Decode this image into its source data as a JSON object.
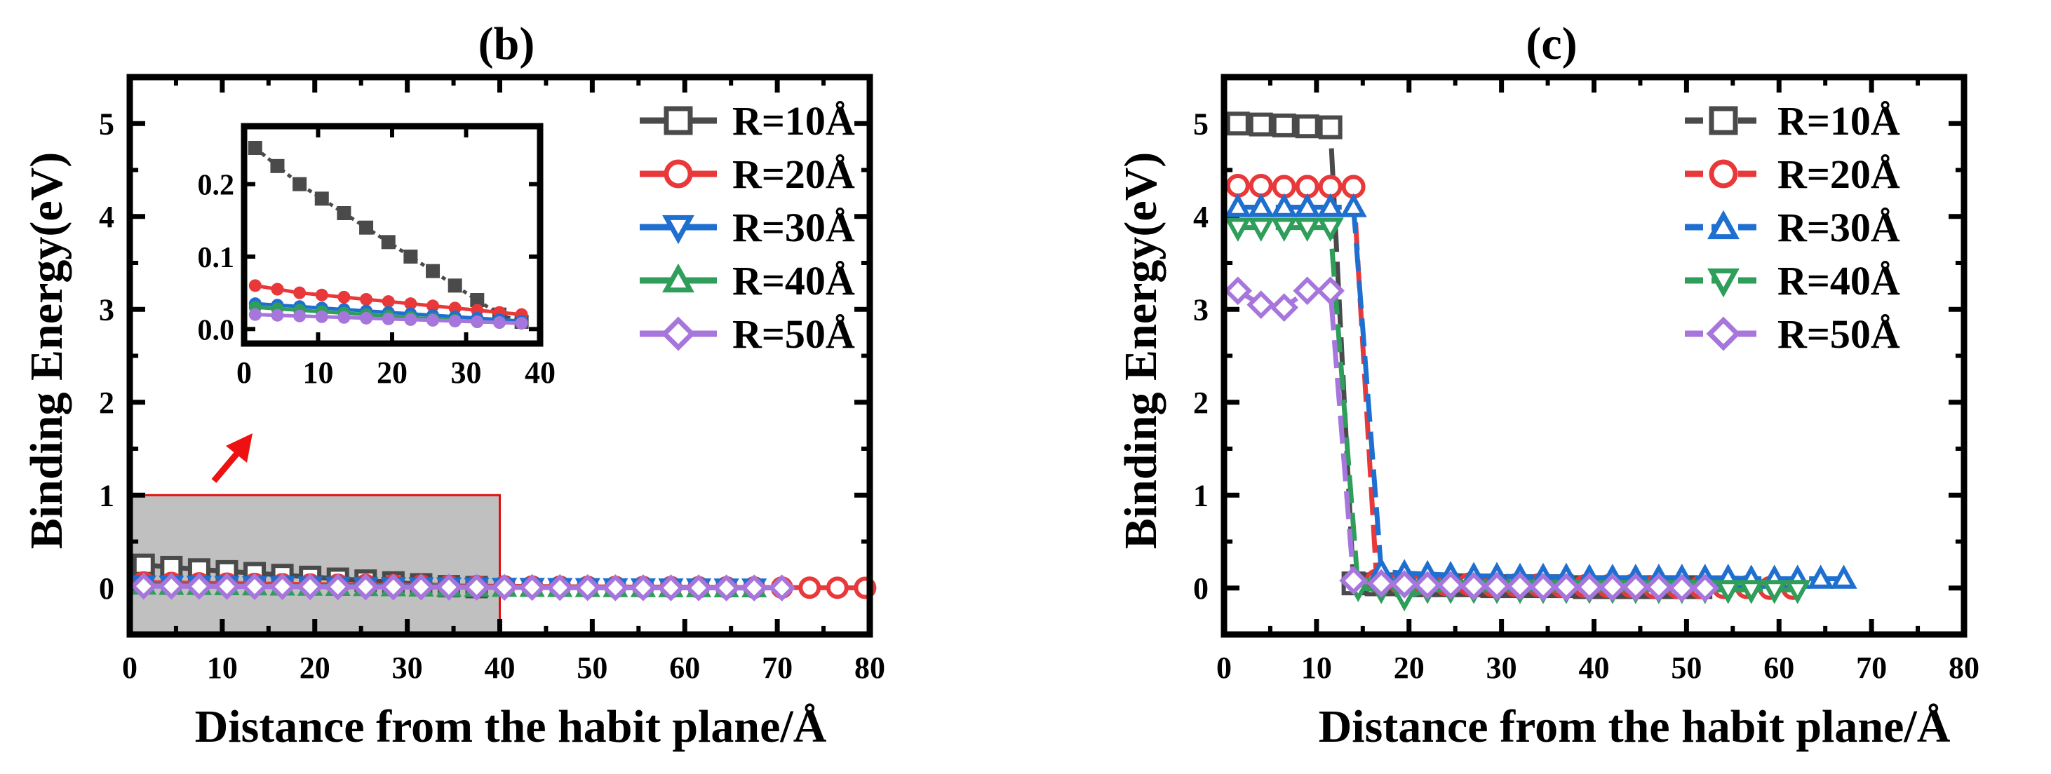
{
  "colors": {
    "r10": "#4a4a4a",
    "r20": "#e8383a",
    "r30": "#1f6fd0",
    "r40": "#2e9e5a",
    "r50": "#a776dd",
    "highlight_fill": "#c0c0c0",
    "highlight_stroke": "#e01010",
    "arrow": "#ee1111"
  },
  "chart_data": [
    {
      "panel": "(b)",
      "type": "line",
      "title": "(b)",
      "xlabel": "Distance from the habit plane/Å",
      "ylabel": "Binding Energy(eV)",
      "xlim": [
        0,
        80
      ],
      "ylim": [
        -0.5,
        5.5
      ],
      "xticks": [
        0,
        10,
        20,
        30,
        40,
        50,
        60,
        70,
        80
      ],
      "yticks": [
        0,
        1,
        2,
        3,
        4,
        5
      ],
      "highlight_region": {
        "x": [
          0,
          40
        ],
        "y": [
          -0.5,
          1.0
        ]
      },
      "legend_position": "top-right",
      "series": [
        {
          "name": "R=10Å",
          "key": "r10",
          "marker": "square",
          "x": [
            1.5,
            4.5,
            7.5,
            10.5,
            13.5,
            16.5,
            19.5,
            22.5,
            25.5,
            28.5,
            31.5,
            34.5,
            37.5
          ],
          "y": [
            0.25,
            0.225,
            0.2,
            0.18,
            0.16,
            0.14,
            0.12,
            0.1,
            0.08,
            0.06,
            0.04,
            0.02,
            0.01
          ]
        },
        {
          "name": "R=20Å",
          "key": "r20",
          "marker": "circle",
          "x": [
            1.5,
            4.5,
            7.5,
            10.5,
            13.5,
            16.5,
            19.5,
            22.5,
            25.5,
            28.5,
            31.5,
            34.5,
            37.5,
            40.5,
            43.5,
            46.5,
            49.5,
            52.5,
            55.5,
            58.5,
            61.5,
            64.5,
            67.5,
            70.5,
            73.5,
            76.5,
            79.5
          ],
          "y": [
            0.06,
            0.055,
            0.05,
            0.047,
            0.044,
            0.041,
            0.038,
            0.035,
            0.032,
            0.029,
            0.026,
            0.023,
            0.02,
            0.018,
            0.016,
            0.014,
            0.012,
            0.011,
            0.01,
            0.009,
            0.008,
            0.007,
            0.006,
            0.005,
            0.004,
            0.003,
            0.002
          ]
        },
        {
          "name": "R=30Å",
          "key": "r30",
          "marker": "triangle-down",
          "x": [
            1.5,
            4.5,
            7.5,
            10.5,
            13.5,
            16.5,
            19.5,
            22.5,
            25.5,
            28.5,
            31.5,
            34.5,
            37.5,
            40.5,
            43.5,
            46.5,
            49.5,
            52.5,
            55.5,
            58.5,
            61.5,
            64.5,
            67.5
          ],
          "y": [
            0.035,
            0.033,
            0.031,
            0.029,
            0.027,
            0.025,
            0.023,
            0.021,
            0.019,
            0.017,
            0.015,
            0.013,
            0.011,
            0.009,
            0.008,
            0.007,
            0.006,
            0.005,
            0.004,
            0.003,
            0.003,
            0.002,
            0.002
          ]
        },
        {
          "name": "R=40Å",
          "key": "r40",
          "marker": "triangle-up",
          "x": [
            1.5,
            4.5,
            7.5,
            10.5,
            13.5,
            16.5,
            19.5,
            22.5,
            25.5,
            28.5,
            31.5,
            34.5,
            37.5,
            40.5,
            43.5,
            46.5,
            49.5,
            52.5,
            55.5,
            58.5,
            61.5,
            64.5,
            67.5
          ],
          "y": [
            0.03,
            0.028,
            0.026,
            0.024,
            0.022,
            0.02,
            0.018,
            0.016,
            0.014,
            0.012,
            0.01,
            0.009,
            0.008,
            0.007,
            0.006,
            0.005,
            0.004,
            0.003,
            0.003,
            0.002,
            0.002,
            0.001,
            0.001
          ]
        },
        {
          "name": "R=50Å",
          "key": "r50",
          "marker": "diamond",
          "x": [
            1.5,
            4.5,
            7.5,
            10.5,
            13.5,
            16.5,
            19.5,
            22.5,
            25.5,
            28.5,
            31.5,
            34.5,
            37.5,
            40.5,
            43.5,
            46.5,
            49.5,
            52.5,
            55.5,
            58.5,
            61.5,
            64.5,
            67.5,
            70.5
          ],
          "y": [
            0.02,
            0.019,
            0.018,
            0.017,
            0.016,
            0.015,
            0.014,
            0.013,
            0.012,
            0.011,
            0.01,
            0.009,
            0.008,
            0.007,
            0.006,
            0.005,
            0.004,
            0.003,
            0.003,
            0.002,
            0.002,
            0.001,
            0.001,
            0.001
          ]
        }
      ],
      "inset": {
        "xlim": [
          0,
          40
        ],
        "ylim": [
          -0.02,
          0.28
        ],
        "xticks": [
          0,
          10,
          20,
          30,
          40
        ],
        "yticks": [
          0.0,
          0.1,
          0.2
        ],
        "ytick_labels": [
          "0.0",
          "0.1",
          "0.2"
        ]
      }
    },
    {
      "panel": "(c)",
      "type": "line",
      "title": "(c)",
      "xlabel": "Distance from the habit plane/Å",
      "ylabel": "Binding Energy(eV)",
      "xlim": [
        0,
        80
      ],
      "ylim": [
        -0.5,
        5.5
      ],
      "xticks": [
        0,
        10,
        20,
        30,
        40,
        50,
        60,
        70,
        80
      ],
      "yticks": [
        0,
        1,
        2,
        3,
        4,
        5
      ],
      "legend_position": "top-right",
      "series": [
        {
          "name": "R=10Å",
          "key": "r10",
          "marker": "square",
          "x": [
            1.5,
            4.0,
            6.5,
            9.0,
            11.5,
            14.0,
            16.5,
            19.0,
            21.5,
            24.0,
            26.5,
            29.0,
            31.5,
            34.0,
            36.5,
            39.0,
            41.5,
            44.0,
            46.5,
            49.0,
            51.5
          ],
          "y": [
            5.0,
            4.99,
            4.98,
            4.97,
            4.96,
            0.05,
            0.04,
            0.04,
            0.03,
            0.03,
            0.03,
            0.02,
            0.02,
            0.02,
            0.02,
            0.01,
            0.01,
            0.01,
            0.01,
            0.01,
            0.01
          ]
        },
        {
          "name": "R=20Å",
          "key": "r20",
          "marker": "circle",
          "x": [
            1.5,
            4.0,
            6.5,
            9.0,
            11.5,
            14.0,
            16.5,
            19.0,
            21.5,
            24.0,
            26.5,
            29.0,
            31.5,
            34.0,
            36.5,
            39.0,
            41.5,
            44.0,
            46.5,
            49.0,
            51.5,
            54.0,
            56.5,
            59.0,
            61.5
          ],
          "y": [
            4.33,
            4.33,
            4.32,
            4.32,
            4.32,
            4.32,
            0.08,
            0.06,
            0.05,
            0.04,
            0.04,
            0.03,
            0.03,
            0.03,
            0.02,
            0.02,
            0.02,
            0.02,
            0.01,
            0.01,
            0.01,
            0.01,
            0.01,
            0.0,
            0.0
          ]
        },
        {
          "name": "R=30Å",
          "key": "r30",
          "marker": "triangle-up",
          "x": [
            1.5,
            4.0,
            6.5,
            9.0,
            11.5,
            14.0,
            17.0,
            19.5,
            22.0,
            24.5,
            27.0,
            29.5,
            32.0,
            34.5,
            37.0,
            39.5,
            42.0,
            44.5,
            47.0,
            49.5,
            52.0,
            54.5,
            57.0,
            59.5,
            62.0,
            64.5,
            67.0
          ],
          "y": [
            4.1,
            4.1,
            4.1,
            4.1,
            4.1,
            4.1,
            0.18,
            0.16,
            0.15,
            0.14,
            0.13,
            0.13,
            0.12,
            0.12,
            0.12,
            0.11,
            0.11,
            0.11,
            0.11,
            0.11,
            0.11,
            0.11,
            0.1,
            0.1,
            0.1,
            0.1,
            0.1
          ]
        },
        {
          "name": "R=40Å",
          "key": "r40",
          "marker": "triangle-down",
          "x": [
            1.5,
            4.0,
            6.5,
            9.0,
            11.5,
            14.5,
            17.0,
            19.5,
            22.0,
            24.5,
            27.0,
            29.5,
            32.0,
            34.5,
            37.0,
            39.5,
            42.0,
            44.5,
            47.0,
            49.5,
            52.0,
            54.5,
            57.0,
            59.5,
            62.0
          ],
          "y": [
            3.88,
            3.88,
            3.88,
            3.88,
            3.88,
            0.0,
            -0.02,
            -0.1,
            -0.02,
            -0.02,
            -0.02,
            -0.02,
            -0.02,
            -0.02,
            -0.02,
            -0.02,
            -0.02,
            -0.02,
            -0.02,
            -0.02,
            -0.02,
            -0.02,
            -0.02,
            -0.02,
            -0.02
          ]
        },
        {
          "name": "R=50Å",
          "key": "r50",
          "marker": "diamond",
          "x": [
            1.5,
            4.0,
            6.5,
            9.0,
            11.5,
            14.0,
            17.0,
            19.5,
            22.0,
            24.5,
            27.0,
            29.5,
            32.0,
            34.5,
            37.0,
            39.5,
            42.0,
            44.5,
            47.0,
            49.5,
            52.0
          ],
          "y": [
            3.2,
            3.05,
            3.02,
            3.2,
            3.2,
            0.08,
            0.05,
            0.04,
            0.03,
            0.03,
            0.02,
            0.02,
            0.02,
            0.01,
            0.01,
            0.01,
            0.01,
            0.01,
            0.01,
            0.0,
            0.0
          ]
        }
      ]
    }
  ]
}
